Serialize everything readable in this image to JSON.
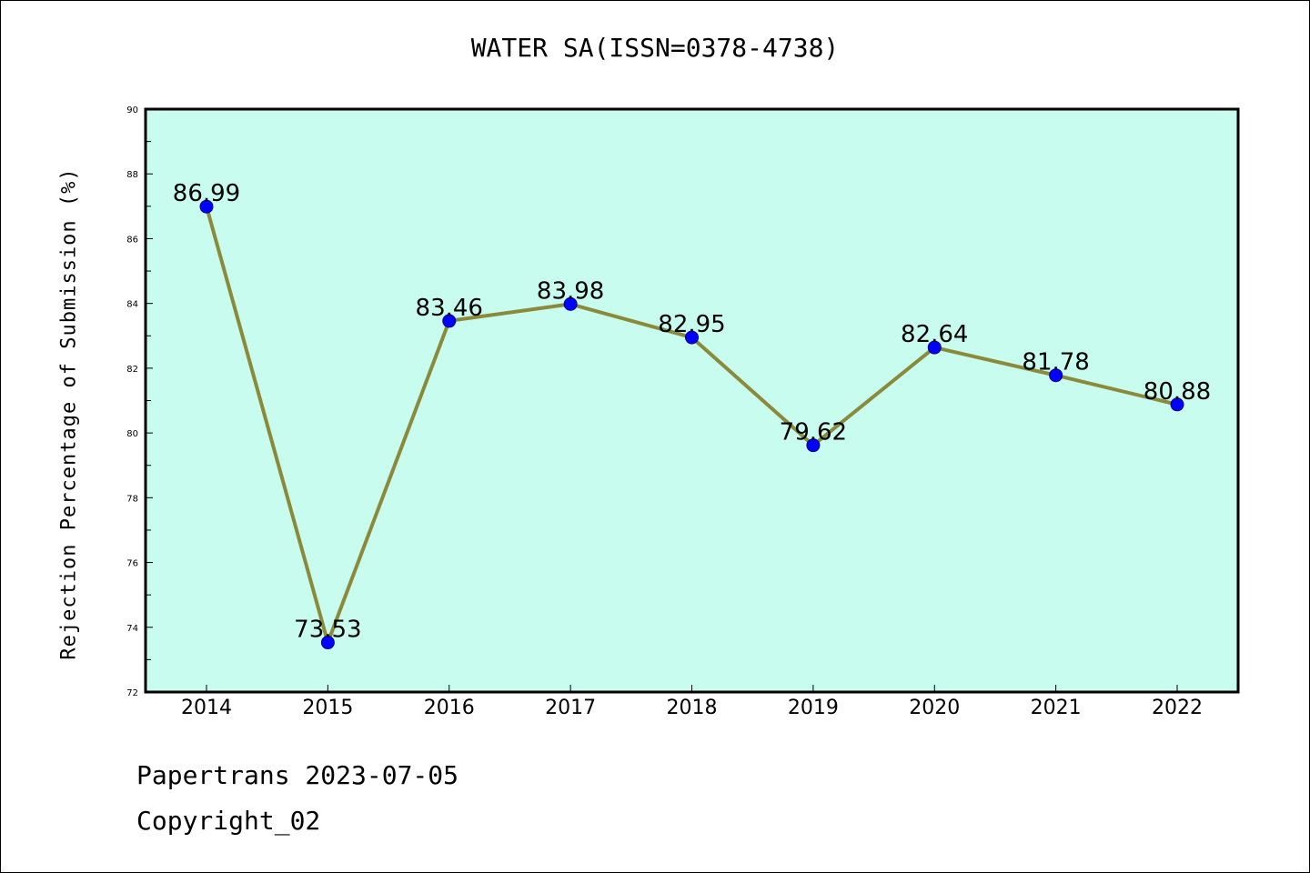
{
  "chart_data": {
    "type": "line",
    "title": "WATER SA(ISSN=0378-4738)",
    "xlabel": "",
    "ylabel": "Rejection Percentage of Submission (%)",
    "categories": [
      "2014",
      "2015",
      "2016",
      "2017",
      "2018",
      "2019",
      "2020",
      "2021",
      "2022"
    ],
    "series": [
      {
        "values": [
          86.99,
          73.53,
          83.46,
          83.98,
          82.95,
          79.62,
          82.64,
          81.78,
          80.88
        ],
        "labels": [
          "86.99",
          "73.53",
          "83.46",
          "83.98",
          "82.95",
          "79.62",
          "82.64",
          "81.78",
          "80.88"
        ]
      }
    ],
    "ylim": [
      72,
      90
    ],
    "yticks": [
      "72",
      "74",
      "76",
      "78",
      "80",
      "82",
      "84",
      "86",
      "88",
      "90"
    ],
    "colors": {
      "background": "#c8fcee",
      "line": "#8b8a3a",
      "marker": "#0000ff"
    },
    "grid": false,
    "legend": "none"
  },
  "footer": {
    "line1": "Papertrans 2023-07-05",
    "line2": "Copyright_02"
  }
}
